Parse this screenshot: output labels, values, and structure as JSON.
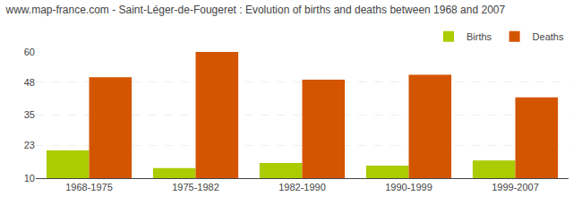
{
  "chart_data": {
    "type": "bar",
    "title": "www.map-france.com - Saint-Léger-de-Fougeret : Evolution of births and deaths between 1968 and 2007",
    "categories": [
      "1968-1975",
      "1975-1982",
      "1982-1990",
      "1990-1999",
      "1999-2007"
    ],
    "series": [
      {
        "name": "Births",
        "color": "#aacc00",
        "values": [
          21,
          14,
          16,
          15,
          17
        ]
      },
      {
        "name": "Deaths",
        "color": "#d45500",
        "values": [
          50,
          60,
          49,
          51,
          42
        ]
      }
    ],
    "ylim": [
      10,
      60
    ],
    "yticks": [
      10,
      23,
      35,
      48,
      60
    ],
    "grid": true,
    "legend": "upper right"
  }
}
